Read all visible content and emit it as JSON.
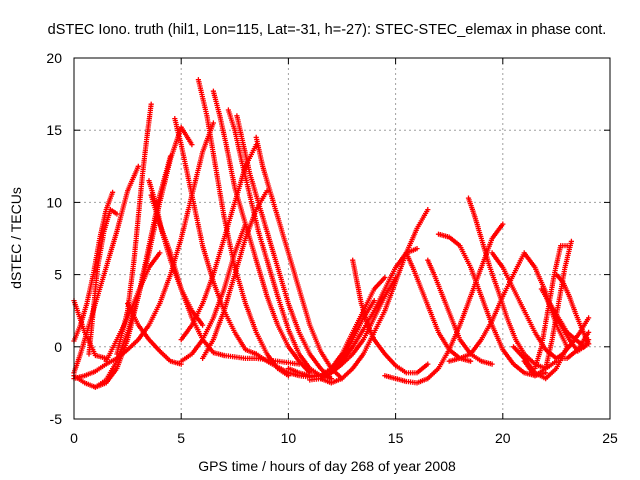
{
  "chart_data": {
    "type": "scatter",
    "title": "dSTEC Iono. truth (hil1, Lon=115, Lat=-31, h=-27): STEC-STEC_elemax in phase cont.",
    "xlabel": "GPS time / hours of day 268 of year 2008",
    "ylabel": "dSTEC  / TECUs",
    "xlim": [
      0,
      25
    ],
    "ylim": [
      -5,
      20
    ],
    "xticks": [
      0,
      5,
      10,
      15,
      20,
      25
    ],
    "yticks": [
      -5,
      0,
      5,
      10,
      15,
      20
    ],
    "xtick_labels": [
      "0",
      "5",
      "10",
      "15",
      "20",
      "25"
    ],
    "ytick_labels": [
      "-5",
      "0",
      "5",
      "10",
      "15",
      "20"
    ],
    "grid": true,
    "marker": "+",
    "color": "#ff0000",
    "series": [
      {
        "x": [
          0.0,
          0.5,
          1.0,
          1.5
        ],
        "y": [
          3.2,
          1.0,
          -0.6,
          -0.8
        ]
      },
      {
        "x": [
          0.0,
          0.5,
          1.0,
          1.5,
          2.0,
          2.5,
          3.0,
          3.5,
          4.0,
          4.5,
          5.0,
          5.5
        ],
        "y": [
          -2.0,
          -2.5,
          -2.8,
          -2.3,
          -1.0,
          1.0,
          3.5,
          6.5,
          10.0,
          13.0,
          15.2,
          14.0
        ]
      },
      {
        "x": [
          0.0,
          0.5,
          1.0,
          1.5,
          2.0,
          2.5,
          3.0,
          3.5,
          4.0,
          4.5,
          5.0,
          5.5,
          6.0,
          6.5
        ],
        "y": [
          -2.2,
          -2.0,
          -1.7,
          -1.2,
          -0.8,
          -0.2,
          0.5,
          1.5,
          3.0,
          5.0,
          7.5,
          10.5,
          13.5,
          15.5
        ]
      },
      {
        "x": [
          0.0,
          0.3,
          0.6,
          1.0,
          1.5,
          2.0,
          2.5,
          3.0
        ],
        "y": [
          -1.8,
          -0.5,
          1.0,
          3.0,
          5.5,
          8.0,
          10.8,
          12.5
        ]
      },
      {
        "x": [
          0.0,
          0.3,
          0.6,
          0.9,
          1.2,
          1.5,
          1.8
        ],
        "y": [
          0.4,
          1.5,
          3.0,
          5.0,
          7.5,
          9.5,
          10.7
        ]
      },
      {
        "x": [
          0.7,
          0.9,
          1.1,
          1.4,
          1.7,
          2.0
        ],
        "y": [
          -0.5,
          2.5,
          5.5,
          8.0,
          9.5,
          9.2
        ]
      },
      {
        "x": [
          1.0,
          1.5,
          2.0,
          2.5,
          3.0,
          3.5,
          4.0,
          4.5
        ],
        "y": [
          -2.8,
          -2.5,
          -1.5,
          0.5,
          3.5,
          7.0,
          10.5,
          13.2
        ]
      },
      {
        "x": [
          2.0,
          2.5,
          2.8,
          3.0,
          3.2,
          3.4,
          3.6
        ],
        "y": [
          -0.5,
          2.5,
          6.0,
          9.0,
          12.0,
          14.5,
          16.8
        ]
      },
      {
        "x": [
          1.5,
          2.0,
          2.5,
          3.0,
          3.5,
          4.0
        ],
        "y": [
          -1.0,
          0.5,
          2.0,
          3.8,
          5.5,
          6.5
        ]
      },
      {
        "x": [
          3.6,
          4.0,
          4.5,
          5.0,
          5.5,
          6.0,
          6.5,
          7.0
        ],
        "y": [
          10.5,
          8.5,
          6.5,
          4.0,
          2.0,
          0.5,
          -0.4,
          -0.6
        ]
      },
      {
        "x": [
          2.5,
          3.0,
          3.5,
          4.0,
          4.5,
          5.0
        ],
        "y": [
          3.0,
          1.5,
          0.5,
          -0.3,
          -1.0,
          -1.2
        ]
      },
      {
        "x": [
          3.5,
          3.8,
          4.1,
          4.5,
          5.0,
          5.5,
          6.0
        ],
        "y": [
          11.5,
          10.0,
          8.0,
          6.0,
          4.0,
          2.5,
          1.5
        ]
      },
      {
        "x": [
          4.7,
          5.0,
          5.5,
          6.0,
          6.5,
          7.0,
          7.5,
          8.0,
          8.5
        ],
        "y": [
          15.8,
          14.0,
          10.5,
          7.0,
          4.5,
          2.5,
          1.0,
          -0.2,
          -0.5
        ]
      },
      {
        "x": [
          5.8,
          6.2,
          6.6,
          7.0,
          7.5,
          8.0,
          8.5,
          9.0,
          9.5,
          10.0
        ],
        "y": [
          18.5,
          16.0,
          12.5,
          9.0,
          5.5,
          3.0,
          1.0,
          -0.5,
          -1.5,
          -2.0
        ]
      },
      {
        "x": [
          6.5,
          6.8,
          7.1,
          7.5,
          8.0,
          8.5,
          9.0,
          9.5,
          10.0,
          10.5,
          11.0
        ],
        "y": [
          17.7,
          16.0,
          14.0,
          11.0,
          8.5,
          6.0,
          3.5,
          1.5,
          0.0,
          -1.0,
          -1.8
        ]
      },
      {
        "x": [
          7.2,
          7.5,
          7.8,
          8.2,
          8.6,
          9.0,
          9.5,
          10.0,
          10.5,
          11.0,
          11.5,
          12.0
        ],
        "y": [
          16.4,
          15.0,
          13.0,
          10.5,
          8.0,
          6.0,
          3.5,
          1.2,
          -0.5,
          -1.5,
          -2.0,
          -2.2
        ]
      },
      {
        "x": [
          7.6,
          7.9,
          8.2,
          8.6,
          9.0,
          9.5,
          10.0,
          10.5,
          11.0,
          11.5,
          12.0
        ],
        "y": [
          16.0,
          14.0,
          12.0,
          10.0,
          8.0,
          5.5,
          3.0,
          1.0,
          -0.5,
          -1.5,
          -2.2
        ]
      },
      {
        "x": [
          8.5,
          8.8,
          9.1,
          9.5,
          10.0,
          10.5,
          11.0,
          11.5,
          12.0,
          12.5
        ],
        "y": [
          14.5,
          12.5,
          11.0,
          9.0,
          6.5,
          4.0,
          1.5,
          -0.3,
          -1.5,
          -2.2
        ]
      },
      {
        "x": [
          6.0,
          6.5,
          7.0,
          7.5,
          8.0,
          8.5,
          9.0
        ],
        "y": [
          -0.8,
          0.5,
          2.5,
          5.0,
          7.5,
          9.5,
          10.8
        ]
      },
      {
        "x": [
          5.0,
          5.5,
          6.0,
          6.5,
          7.0,
          7.5,
          8.0,
          8.5
        ],
        "y": [
          0.5,
          1.5,
          3.0,
          5.0,
          7.5,
          10.0,
          12.5,
          14.0
        ]
      },
      {
        "x": [
          5.0,
          5.5,
          6.0,
          6.5,
          7.0,
          7.5,
          8.0
        ],
        "y": [
          -1.0,
          -0.5,
          0.5,
          2.0,
          4.0,
          6.5,
          8.5
        ]
      },
      {
        "x": [
          7.0,
          7.5,
          8.0,
          8.5,
          9.0,
          9.5,
          10.0,
          10.5
        ],
        "y": [
          -0.6,
          -0.7,
          -0.8,
          -0.8,
          -0.9,
          -1.0,
          -1.1,
          -1.2
        ]
      },
      {
        "x": [
          8.5,
          9.0,
          9.5,
          10.0,
          10.5,
          11.0,
          11.5,
          12.0,
          12.5,
          13.0,
          13.5,
          14.0
        ],
        "y": [
          -0.5,
          -1.0,
          -1.4,
          -1.8,
          -2.0,
          -2.1,
          -2.0,
          -1.6,
          -0.8,
          0.5,
          2.0,
          3.2
        ]
      },
      {
        "x": [
          10.0,
          10.5,
          11.0,
          11.5,
          12.0,
          12.5,
          13.0,
          13.5,
          14.0,
          14.5
        ],
        "y": [
          -1.5,
          -1.8,
          -2.0,
          -2.0,
          -1.5,
          -0.5,
          1.0,
          2.5,
          4.0,
          4.8
        ]
      },
      {
        "x": [
          11.0,
          11.5,
          12.0,
          12.5,
          13.0,
          13.5,
          14.0,
          14.5,
          15.0
        ],
        "y": [
          -2.3,
          -2.2,
          -1.8,
          -1.2,
          -0.5,
          0.5,
          2.0,
          3.5,
          4.8
        ]
      },
      {
        "x": [
          11.5,
          12.0,
          12.5,
          13.0,
          13.5,
          14.0,
          14.5,
          15.0,
          15.5,
          16.0,
          16.5
        ],
        "y": [
          -2.2,
          -2.5,
          -2.2,
          -1.5,
          -0.5,
          1.0,
          2.5,
          4.5,
          6.5,
          8.2,
          9.5
        ]
      },
      {
        "x": [
          12.0,
          12.5,
          13.0,
          13.5,
          14.0,
          14.5,
          15.0,
          15.5,
          16.0
        ],
        "y": [
          -1.8,
          -1.0,
          0.0,
          1.2,
          2.5,
          4.0,
          5.5,
          6.5,
          6.8
        ]
      },
      {
        "x": [
          13.0,
          13.2,
          13.4,
          13.7,
          14.0,
          14.5,
          15.0,
          15.5,
          16.0,
          16.5
        ],
        "y": [
          6.0,
          4.5,
          3.0,
          1.5,
          0.5,
          -0.5,
          -1.3,
          -1.8,
          -1.8,
          -1.2
        ]
      },
      {
        "x": [
          14.5,
          15.0,
          15.5,
          16.0,
          16.5,
          17.0,
          17.5,
          18.0,
          18.5,
          19.0,
          19.5,
          20.0
        ],
        "y": [
          -2.0,
          -2.2,
          -2.4,
          -2.5,
          -2.2,
          -1.5,
          -0.2,
          1.5,
          3.5,
          5.5,
          7.5,
          8.5
        ]
      },
      {
        "x": [
          15.5,
          15.8,
          16.2,
          16.6,
          17.0,
          17.5,
          18.0,
          18.5
        ],
        "y": [
          6.5,
          5.5,
          4.0,
          2.5,
          1.0,
          -0.2,
          -0.8,
          -1.0
        ]
      },
      {
        "x": [
          16.5,
          16.8,
          17.2,
          17.6,
          18.0,
          18.5,
          19.0,
          19.5
        ],
        "y": [
          6.0,
          5.0,
          3.5,
          2.0,
          0.5,
          -0.5,
          -1.0,
          -1.2
        ]
      },
      {
        "x": [
          17.0,
          17.5,
          18.0,
          18.5,
          19.0,
          19.5,
          20.0,
          20.5,
          21.0,
          21.5,
          22.0
        ],
        "y": [
          7.8,
          7.6,
          7.0,
          5.5,
          3.5,
          1.5,
          -0.2,
          -1.2,
          -1.8,
          -2.0,
          -1.8
        ]
      },
      {
        "x": [
          18.4,
          18.7,
          19.0,
          19.4,
          19.8,
          20.2,
          20.6,
          21.0,
          21.5,
          22.0,
          22.5
        ],
        "y": [
          10.3,
          9.0,
          7.5,
          5.5,
          3.8,
          2.0,
          0.5,
          -0.5,
          -1.2,
          -1.5,
          -1.0
        ]
      },
      {
        "x": [
          17.5,
          18.0,
          18.5,
          19.0,
          19.5,
          20.0,
          20.5,
          21.0,
          21.5,
          22.0,
          22.5,
          23.0
        ],
        "y": [
          -1.0,
          -0.8,
          -0.5,
          0.5,
          1.8,
          3.5,
          5.0,
          6.5,
          5.5,
          3.8,
          1.5,
          0.0
        ]
      },
      {
        "x": [
          19.5,
          20.0,
          20.5,
          21.0,
          21.5,
          22.0,
          22.5,
          23.0,
          23.5,
          24.0
        ],
        "y": [
          6.5,
          5.5,
          4.0,
          2.5,
          1.0,
          -0.2,
          -0.8,
          -0.8,
          -0.2,
          1.0
        ]
      },
      {
        "x": [
          20.5,
          21.0,
          21.5,
          22.0,
          22.5,
          23.0
        ],
        "y": [
          0.0,
          -0.8,
          -1.8,
          -2.2,
          -1.5,
          0.0
        ]
      },
      {
        "x": [
          21.0,
          21.5,
          22.0,
          22.3,
          22.6,
          22.9,
          23.2
        ],
        "y": [
          -1.0,
          -2.0,
          -1.5,
          0.5,
          3.0,
          5.5,
          7.3
        ]
      },
      {
        "x": [
          21.5,
          21.8,
          22.1,
          22.4,
          22.7,
          23.0
        ],
        "y": [
          -1.5,
          0.0,
          2.5,
          5.0,
          7.0,
          7.0
        ]
      },
      {
        "x": [
          22.0,
          22.3,
          22.7,
          23.1,
          23.5,
          24.0
        ],
        "y": [
          3.5,
          2.5,
          1.5,
          0.5,
          -0.3,
          0.2
        ]
      },
      {
        "x": [
          22.5,
          22.8,
          23.1,
          23.4,
          23.7,
          24.0
        ],
        "y": [
          5.0,
          4.5,
          3.5,
          2.3,
          1.2,
          0.2
        ]
      },
      {
        "x": [
          22.5,
          22.8,
          23.2,
          23.6,
          24.0
        ],
        "y": [
          -0.8,
          -0.5,
          0.2,
          1.0,
          2.0
        ]
      },
      {
        "x": [
          21.8,
          22.2,
          22.6,
          23.0,
          23.4,
          23.8,
          24.0
        ],
        "y": [
          4.0,
          3.0,
          2.0,
          1.0,
          0.5,
          0.0,
          0.5
        ]
      }
    ]
  }
}
